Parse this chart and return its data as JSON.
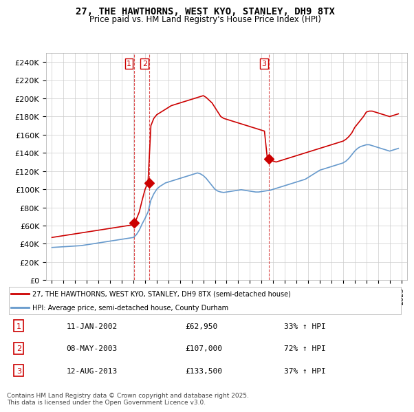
{
  "title": "27, THE HAWTHORNS, WEST KYO, STANLEY, DH9 8TX",
  "subtitle": "Price paid vs. HM Land Registry's House Price Index (HPI)",
  "legend_property": "27, THE HAWTHORNS, WEST KYO, STANLEY, DH9 8TX (semi-detached house)",
  "legend_hpi": "HPI: Average price, semi-detached house, County Durham",
  "footer": "Contains HM Land Registry data © Crown copyright and database right 2025.\nThis data is licensed under the Open Government Licence v3.0.",
  "transactions": [
    {
      "num": 1,
      "date": "11-JAN-2002",
      "price": 62950,
      "pct": "33%",
      "year": 2002.03
    },
    {
      "num": 2,
      "date": "08-MAY-2003",
      "price": 107000,
      "pct": "72%",
      "year": 2003.36
    },
    {
      "num": 3,
      "date": "12-AUG-2013",
      "price": 133500,
      "pct": "37%",
      "year": 2013.61
    }
  ],
  "property_color": "#cc0000",
  "hpi_color": "#6699cc",
  "transaction_color": "#cc0000",
  "background_color": "#ffffff",
  "grid_color": "#cccccc",
  "ylim": [
    0,
    250000
  ],
  "yticks": [
    0,
    20000,
    40000,
    60000,
    80000,
    100000,
    120000,
    140000,
    160000,
    180000,
    200000,
    220000,
    240000
  ],
  "property_years": [
    1995.0,
    1995.25,
    1995.5,
    1995.75,
    1996.0,
    1996.25,
    1996.5,
    1996.75,
    1997.0,
    1997.25,
    1997.5,
    1997.75,
    1998.0,
    1998.25,
    1998.5,
    1998.75,
    1999.0,
    1999.25,
    1999.5,
    1999.75,
    2000.0,
    2000.25,
    2000.5,
    2000.75,
    2001.0,
    2001.25,
    2001.5,
    2001.75,
    2002.0,
    2002.25,
    2002.5,
    2002.75,
    2003.0,
    2003.25,
    2003.5,
    2003.75,
    2004.0,
    2004.25,
    2004.5,
    2004.75,
    2005.0,
    2005.25,
    2005.5,
    2005.75,
    2006.0,
    2006.25,
    2006.5,
    2006.75,
    2007.0,
    2007.25,
    2007.5,
    2007.75,
    2008.0,
    2008.25,
    2008.5,
    2008.75,
    2009.0,
    2009.25,
    2009.5,
    2009.75,
    2010.0,
    2010.25,
    2010.5,
    2010.75,
    2011.0,
    2011.25,
    2011.5,
    2011.75,
    2012.0,
    2012.25,
    2012.5,
    2012.75,
    2013.0,
    2013.25,
    2013.5,
    2013.75,
    2014.0,
    2014.25,
    2014.5,
    2014.75,
    2015.0,
    2015.25,
    2015.5,
    2015.75,
    2016.0,
    2016.25,
    2016.5,
    2016.75,
    2017.0,
    2017.25,
    2017.5,
    2017.75,
    2018.0,
    2018.25,
    2018.5,
    2018.75,
    2019.0,
    2019.25,
    2019.5,
    2019.75,
    2020.0,
    2020.25,
    2020.5,
    2020.75,
    2021.0,
    2021.25,
    2021.5,
    2021.75,
    2022.0,
    2022.25,
    2022.5,
    2022.75,
    2023.0,
    2023.25,
    2023.5,
    2023.75,
    2024.0,
    2024.25,
    2024.5,
    2024.75
  ],
  "property_values": [
    47000,
    47500,
    48000,
    48500,
    49000,
    49500,
    50000,
    50500,
    51000,
    51500,
    52000,
    52500,
    53000,
    53500,
    54000,
    54500,
    55000,
    55500,
    56000,
    56500,
    57000,
    57500,
    58000,
    58500,
    59000,
    59500,
    60000,
    60500,
    62950,
    67000,
    75000,
    88000,
    100000,
    107000,
    170000,
    178000,
    182000,
    184000,
    186000,
    188000,
    190000,
    192000,
    193000,
    194000,
    195000,
    196000,
    197000,
    198000,
    199000,
    200000,
    201000,
    202000,
    203000,
    201000,
    198000,
    195000,
    190000,
    185000,
    180000,
    178000,
    177000,
    176000,
    175000,
    174000,
    173000,
    172000,
    171000,
    170000,
    169000,
    168000,
    167000,
    166000,
    165000,
    164000,
    133500,
    132000,
    131000,
    130000,
    131000,
    132000,
    133000,
    134000,
    135000,
    136000,
    137000,
    138000,
    139000,
    140000,
    141000,
    142000,
    143000,
    144000,
    145000,
    146000,
    147000,
    148000,
    149000,
    150000,
    151000,
    152000,
    153000,
    155000,
    158000,
    162000,
    168000,
    172000,
    176000,
    180000,
    185000,
    186000,
    186000,
    185000,
    184000,
    183000,
    182000,
    181000,
    180000,
    181000,
    182000,
    183000
  ],
  "hpi_years": [
    1995.0,
    1995.25,
    1995.5,
    1995.75,
    1996.0,
    1996.25,
    1996.5,
    1996.75,
    1997.0,
    1997.25,
    1997.5,
    1997.75,
    1998.0,
    1998.25,
    1998.5,
    1998.75,
    1999.0,
    1999.25,
    1999.5,
    1999.75,
    2000.0,
    2000.25,
    2000.5,
    2000.75,
    2001.0,
    2001.25,
    2001.5,
    2001.75,
    2002.0,
    2002.25,
    2002.5,
    2002.75,
    2003.0,
    2003.25,
    2003.5,
    2003.75,
    2004.0,
    2004.25,
    2004.5,
    2004.75,
    2005.0,
    2005.25,
    2005.5,
    2005.75,
    2006.0,
    2006.25,
    2006.5,
    2006.75,
    2007.0,
    2007.25,
    2007.5,
    2007.75,
    2008.0,
    2008.25,
    2008.5,
    2008.75,
    2009.0,
    2009.25,
    2009.5,
    2009.75,
    2010.0,
    2010.25,
    2010.5,
    2010.75,
    2011.0,
    2011.25,
    2011.5,
    2011.75,
    2012.0,
    2012.25,
    2012.5,
    2012.75,
    2013.0,
    2013.25,
    2013.5,
    2013.75,
    2014.0,
    2014.25,
    2014.5,
    2014.75,
    2015.0,
    2015.25,
    2015.5,
    2015.75,
    2016.0,
    2016.25,
    2016.5,
    2016.75,
    2017.0,
    2017.25,
    2017.5,
    2017.75,
    2018.0,
    2018.25,
    2018.5,
    2018.75,
    2019.0,
    2019.25,
    2019.5,
    2019.75,
    2020.0,
    2020.25,
    2020.5,
    2020.75,
    2021.0,
    2021.25,
    2021.5,
    2021.75,
    2022.0,
    2022.25,
    2022.5,
    2022.75,
    2023.0,
    2023.25,
    2023.5,
    2023.75,
    2024.0,
    2024.25,
    2024.5,
    2024.75
  ],
  "hpi_values": [
    36000,
    36200,
    36400,
    36600,
    36800,
    37000,
    37200,
    37400,
    37600,
    37800,
    38000,
    38500,
    39000,
    39500,
    40000,
    40500,
    41000,
    41500,
    42000,
    42500,
    43000,
    43500,
    44000,
    44500,
    45000,
    45500,
    46000,
    46500,
    47000,
    50000,
    55000,
    62000,
    68000,
    75000,
    88000,
    95000,
    100000,
    103000,
    105000,
    107000,
    108000,
    109000,
    110000,
    111000,
    112000,
    113000,
    114000,
    115000,
    116000,
    117000,
    118000,
    117000,
    115000,
    112000,
    108000,
    104000,
    100000,
    98000,
    97000,
    96500,
    97000,
    97500,
    98000,
    98500,
    99000,
    99500,
    99000,
    98500,
    98000,
    97500,
    97000,
    97000,
    97500,
    98000,
    98500,
    99000,
    100000,
    101000,
    102000,
    103000,
    104000,
    105000,
    106000,
    107000,
    108000,
    109000,
    110000,
    111000,
    113000,
    115000,
    117000,
    119000,
    121000,
    122000,
    123000,
    124000,
    125000,
    126000,
    127000,
    128000,
    129000,
    131000,
    134000,
    138000,
    142000,
    145000,
    147000,
    148000,
    149000,
    149000,
    148000,
    147000,
    146000,
    145000,
    144000,
    143000,
    142000,
    143000,
    144000,
    145000
  ]
}
